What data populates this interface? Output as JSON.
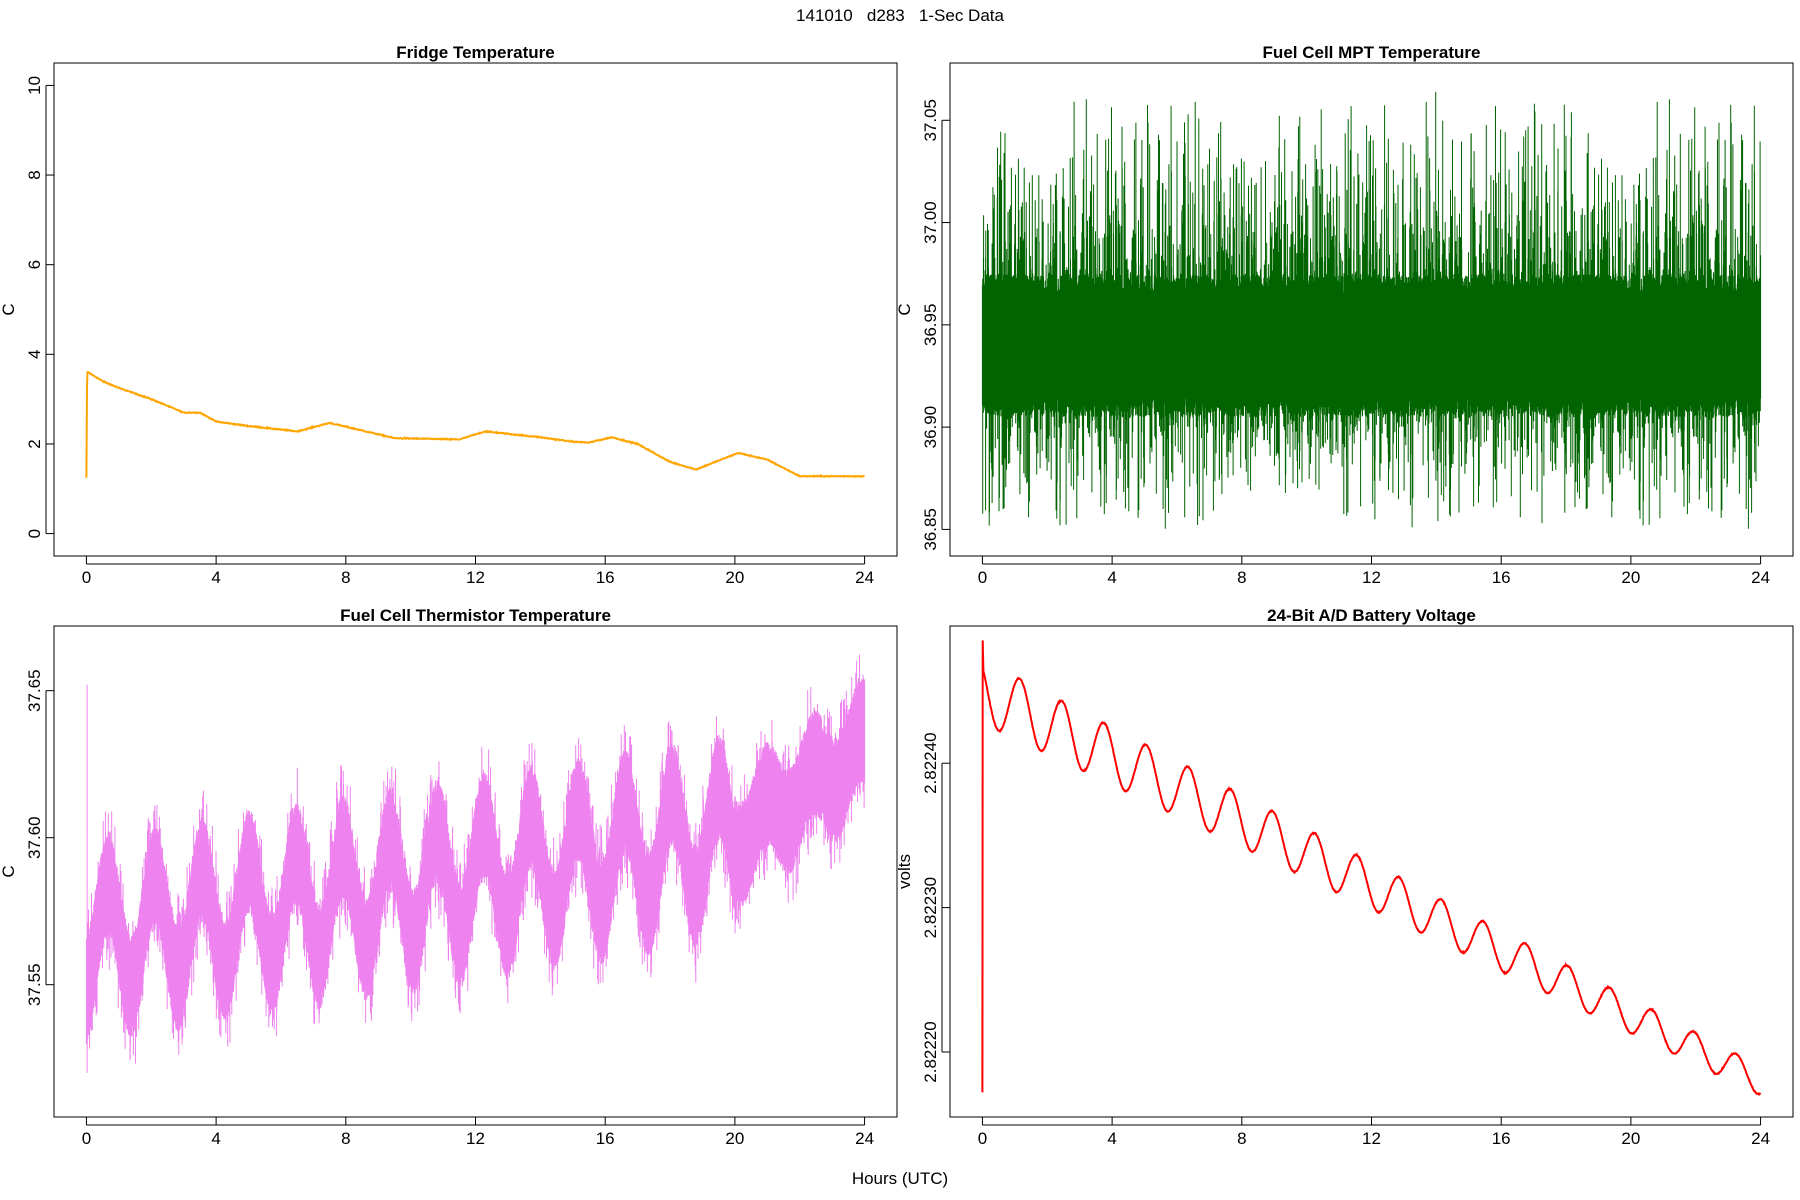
{
  "page_title": "141010   d283   1-Sec Data",
  "x_common_label": "Hours (UTC)",
  "chart_data": [
    {
      "id": "fridge",
      "type": "line",
      "title": "Fridge Temperature",
      "ylabel": "C",
      "color": "#FFA500",
      "xlim": [
        -1,
        25
      ],
      "ylim": [
        -0.5,
        10.5
      ],
      "xticks": [
        0,
        4,
        8,
        12,
        16,
        20,
        24
      ],
      "yticks": [
        0,
        2,
        4,
        6,
        8,
        10
      ],
      "ytick_labels": [
        "0",
        "2",
        "4",
        "6",
        "8",
        "10"
      ],
      "noise": 0.02,
      "series": [
        {
          "x": [
            0,
            0.02,
            0.05,
            0.5,
            1,
            2,
            3,
            3.5,
            4,
            5,
            6.5,
            7.5,
            9.5,
            11.5,
            12.3,
            14,
            15,
            15.5,
            16.2,
            17,
            18,
            18.8,
            20.1,
            21,
            22,
            24
          ],
          "y": [
            1.25,
            3.6,
            3.6,
            3.4,
            3.25,
            3.0,
            2.7,
            2.7,
            2.5,
            2.4,
            2.28,
            2.47,
            2.13,
            2.1,
            2.28,
            2.15,
            2.05,
            2.03,
            2.15,
            2.0,
            1.6,
            1.43,
            1.8,
            1.65,
            1.28,
            1.28
          ]
        }
      ]
    },
    {
      "id": "mpt",
      "type": "line",
      "title": "Fuel Cell MPT Temperature",
      "ylabel": "C",
      "color": "#006400",
      "xlim": [
        -1,
        25
      ],
      "ylim": [
        36.837,
        37.078
      ],
      "xticks": [
        0,
        4,
        8,
        12,
        16,
        20,
        24
      ],
      "yticks": [
        36.85,
        36.9,
        36.95,
        37.0,
        37.05
      ],
      "ytick_labels": [
        "36.85",
        "36.90",
        "36.95",
        "37.00",
        "37.05"
      ],
      "band": {
        "center": 36.94,
        "core_halfwidth": 0.035,
        "spike_high": 37.07,
        "spike_low": 36.845
      }
    },
    {
      "id": "thermistor",
      "type": "line",
      "title": "Fuel Cell Thermistor Temperature",
      "ylabel": "C",
      "color": "#EE82EE",
      "xlim": [
        -1,
        25
      ],
      "ylim": [
        37.505,
        37.672
      ],
      "xticks": [
        0,
        4,
        8,
        12,
        16,
        20,
        24
      ],
      "yticks": [
        37.55,
        37.6,
        37.65
      ],
      "ytick_labels": [
        "37.55",
        "37.60",
        "37.65"
      ],
      "trend": {
        "start": 37.565,
        "mid_hour": 20,
        "mid": 37.6,
        "end": 37.63,
        "osc_amp": 0.018,
        "osc_period": 1.45,
        "band_halfwidth": 0.018,
        "max": 37.665,
        "min": 37.512
      }
    },
    {
      "id": "battery",
      "type": "line",
      "title": "24-Bit A/D Battery Voltage",
      "ylabel": "volts",
      "color": "#FF0000",
      "xlim": [
        -1,
        25
      ],
      "ylim": [
        2.822155,
        2.822495
      ],
      "xticks": [
        0,
        4,
        8,
        12,
        16,
        20,
        24
      ],
      "yticks": [
        2.8222,
        2.8223,
        2.8224
      ],
      "ytick_labels": [
        "2.82220",
        "2.82230",
        "2.82240"
      ],
      "wave": {
        "start": 2.82245,
        "end": 2.82218,
        "amp": 2.2e-05,
        "period": 1.3,
        "initial_dip": 2.822172,
        "initial_peak": 2.822485
      }
    }
  ]
}
